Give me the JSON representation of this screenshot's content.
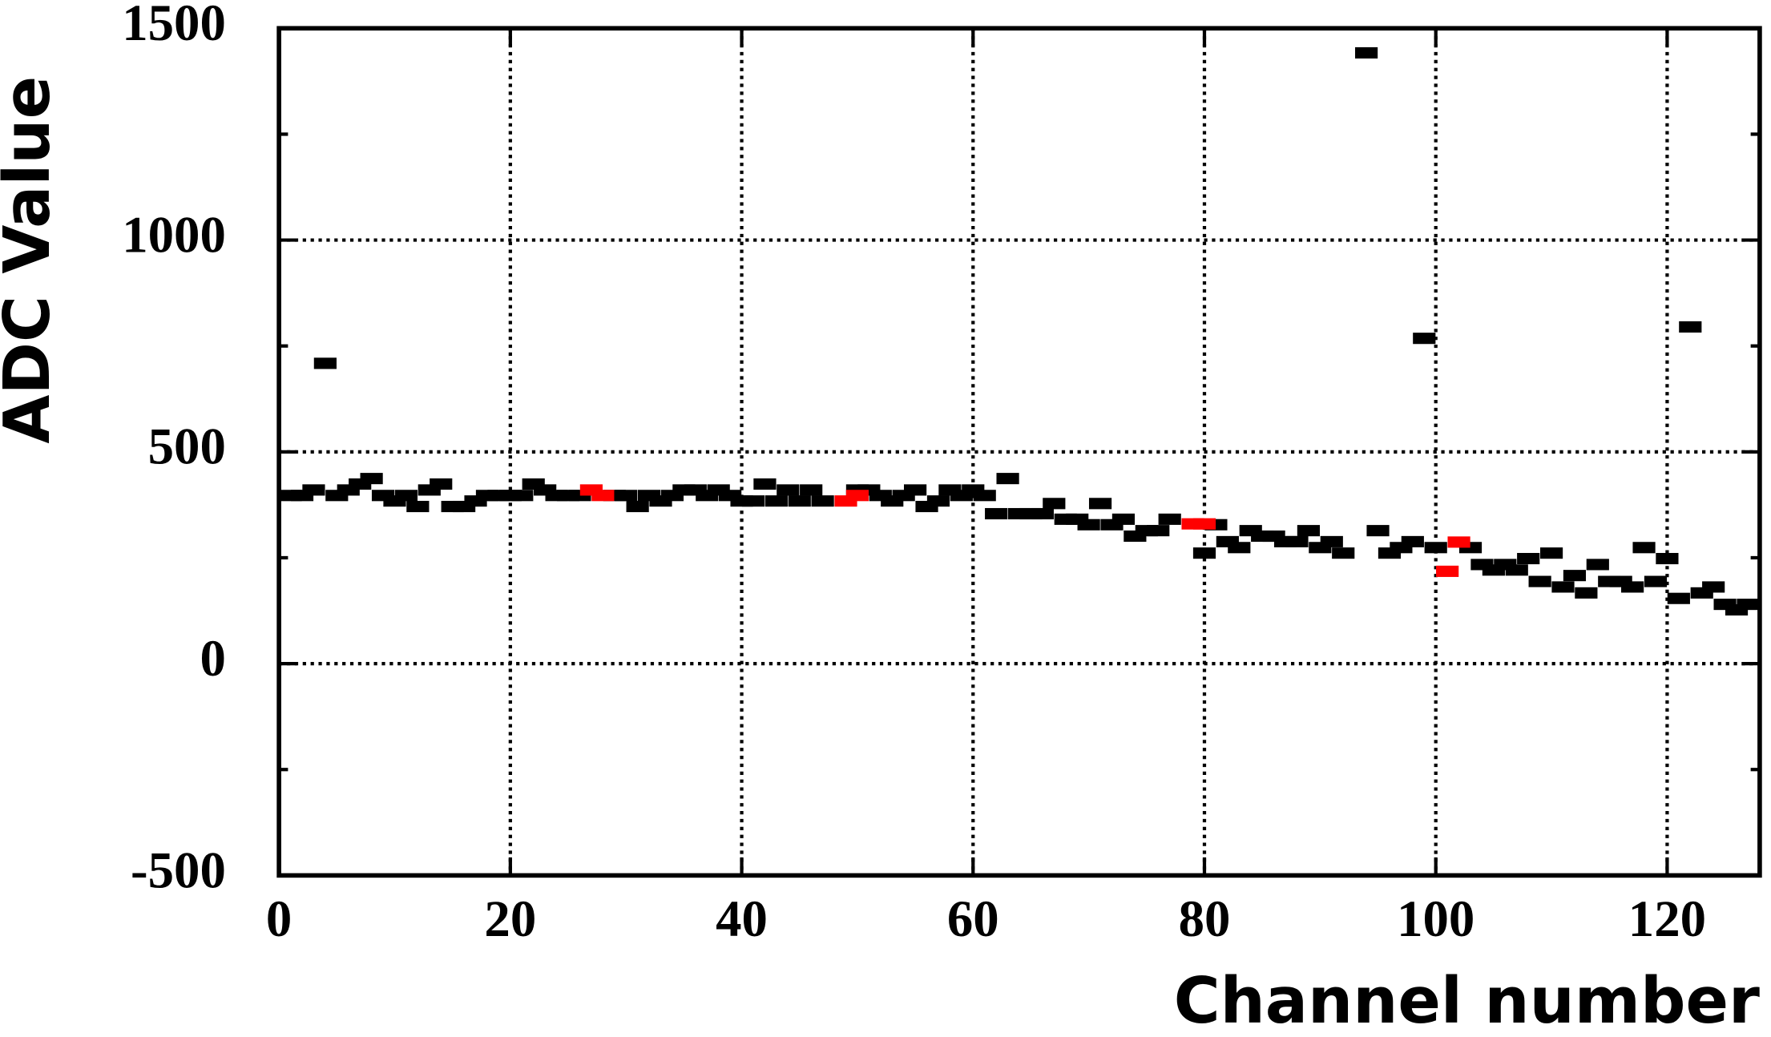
{
  "chart_data": {
    "type": "scatter",
    "x_label": "Channel number",
    "y_label": "ADC Value",
    "xlim": [
      0,
      128
    ],
    "ylim": [
      -500,
      1500
    ],
    "xticks": [
      0,
      20,
      40,
      60,
      80,
      100,
      120
    ],
    "yticks": [
      -500,
      0,
      500,
      1000,
      1500
    ],
    "grid": true,
    "series": [
      {
        "color": "#000000",
        "x": [
          1,
          2,
          3,
          4,
          5,
          6,
          7,
          8,
          9,
          10,
          11,
          12,
          13,
          14,
          15,
          16,
          17,
          18,
          19,
          20,
          21,
          22,
          23,
          24,
          25,
          26,
          29,
          30,
          31,
          32,
          33,
          34,
          35,
          36,
          37,
          38,
          39,
          40,
          41,
          42,
          43,
          44,
          45,
          46,
          47,
          50,
          51,
          52,
          53,
          54,
          55,
          56,
          57,
          58,
          59,
          60,
          61,
          62,
          63,
          64,
          65,
          66,
          67,
          68,
          69,
          70,
          71,
          72,
          73,
          74,
          75,
          76,
          77,
          80,
          81,
          82,
          83,
          84,
          85,
          86,
          87,
          88,
          89,
          90,
          91,
          92,
          94,
          95,
          96,
          97,
          98,
          99,
          100,
          103,
          104,
          105,
          106,
          107,
          108,
          109,
          110,
          111,
          112,
          113,
          114,
          115,
          116,
          117,
          118,
          119,
          120,
          121,
          122,
          123,
          124,
          125,
          126,
          127
        ],
        "values": [
          397,
          397,
          410,
          709,
          397,
          410,
          424,
          437,
          397,
          384,
          397,
          371,
          410,
          424,
          371,
          371,
          384,
          397,
          397,
          397,
          397,
          424,
          410,
          397,
          397,
          397,
          397,
          397,
          371,
          397,
          384,
          397,
          410,
          410,
          397,
          410,
          397,
          384,
          384,
          424,
          384,
          410,
          384,
          410,
          384,
          410,
          410,
          397,
          384,
          397,
          410,
          371,
          384,
          410,
          397,
          410,
          397,
          354,
          437,
          354,
          354,
          354,
          378,
          341,
          341,
          328,
          378,
          328,
          341,
          301,
          314,
          314,
          341,
          261,
          328,
          288,
          274,
          314,
          301,
          301,
          288,
          288,
          314,
          274,
          288,
          261,
          1442,
          314,
          261,
          274,
          288,
          768,
          274,
          274,
          234,
          221,
          234,
          221,
          248,
          194,
          261,
          181,
          208,
          167,
          234,
          194,
          194,
          181,
          274,
          194,
          248,
          154,
          795,
          167,
          181,
          140,
          127,
          140
        ]
      },
      {
        "color": "#ff0000",
        "x": [
          27,
          28,
          49,
          50,
          79,
          80,
          101,
          102
        ],
        "values": [
          410,
          397,
          384,
          397,
          330,
          330,
          218,
          287
        ]
      }
    ]
  }
}
